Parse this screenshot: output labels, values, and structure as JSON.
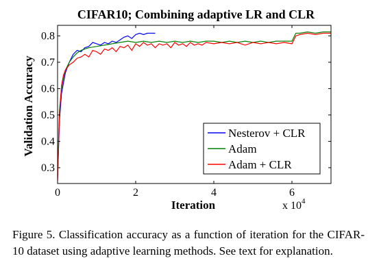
{
  "chart_data": {
    "type": "line",
    "title": "CIFAR10;  Combining adaptive LR and CLR",
    "xlabel": "Iteration",
    "ylabel": "Validation Accuracy",
    "x_multiplier_label": "x 10",
    "x_multiplier_exponent": "4",
    "xlim": [
      0,
      70000
    ],
    "ylim": [
      0.24,
      0.84
    ],
    "x_ticks": [
      0,
      20000,
      40000,
      60000
    ],
    "x_tick_labels": [
      "0",
      "2",
      "4",
      "6"
    ],
    "y_ticks": [
      0.3,
      0.4,
      0.5,
      0.6,
      0.7,
      0.8
    ],
    "y_tick_labels": [
      "0.3",
      "0.4",
      "0.5",
      "0.6",
      "0.7",
      "0.8"
    ],
    "grid": false,
    "legend_position": "bottom-right",
    "series": [
      {
        "name": "Nesterov + CLR",
        "color": "#0000ff",
        "x": [
          0,
          500,
          1000,
          1500,
          2000,
          3000,
          4000,
          5000,
          6000,
          7000,
          8000,
          9000,
          10000,
          11000,
          12000,
          13000,
          14000,
          15000,
          16000,
          17000,
          18000,
          19000,
          20000,
          21000,
          22000,
          23000,
          24000,
          25000
        ],
        "y": [
          0.26,
          0.48,
          0.58,
          0.62,
          0.66,
          0.7,
          0.73,
          0.745,
          0.74,
          0.755,
          0.76,
          0.775,
          0.77,
          0.765,
          0.775,
          0.77,
          0.78,
          0.775,
          0.785,
          0.795,
          0.8,
          0.79,
          0.805,
          0.81,
          0.805,
          0.81,
          0.81,
          0.81
        ]
      },
      {
        "name": "Adam",
        "color": "#008000",
        "x": [
          0,
          500,
          1000,
          1500,
          2000,
          3000,
          4000,
          5000,
          6000,
          7000,
          8000,
          10000,
          12000,
          14000,
          16000,
          18000,
          20000,
          22000,
          24000,
          26000,
          28000,
          30000,
          32000,
          34000,
          36000,
          38000,
          40000,
          42000,
          44000,
          46000,
          48000,
          50000,
          52000,
          54000,
          56000,
          58000,
          60000,
          61000,
          62000,
          64000,
          66000,
          68000,
          70000
        ],
        "y": [
          0.27,
          0.52,
          0.6,
          0.64,
          0.67,
          0.7,
          0.72,
          0.735,
          0.745,
          0.75,
          0.755,
          0.76,
          0.765,
          0.77,
          0.775,
          0.78,
          0.775,
          0.78,
          0.775,
          0.78,
          0.775,
          0.78,
          0.775,
          0.78,
          0.775,
          0.78,
          0.78,
          0.775,
          0.78,
          0.775,
          0.78,
          0.775,
          0.78,
          0.775,
          0.78,
          0.78,
          0.78,
          0.81,
          0.81,
          0.815,
          0.81,
          0.815,
          0.815
        ]
      },
      {
        "name": "Adam + CLR",
        "color": "#ff0000",
        "x": [
          0,
          500,
          1000,
          1500,
          2000,
          3000,
          4000,
          5000,
          6000,
          7000,
          8000,
          9000,
          10000,
          11000,
          12000,
          13000,
          14000,
          15000,
          16000,
          17000,
          18000,
          19000,
          20000,
          21000,
          22000,
          23000,
          24000,
          25000,
          26000,
          27000,
          28000,
          29000,
          30000,
          31000,
          32000,
          33000,
          34000,
          35000,
          36000,
          37000,
          38000,
          40000,
          42000,
          44000,
          46000,
          48000,
          50000,
          52000,
          54000,
          56000,
          58000,
          60000,
          61000,
          62000,
          64000,
          66000,
          68000,
          70000
        ],
        "y": [
          0.25,
          0.5,
          0.61,
          0.65,
          0.67,
          0.69,
          0.7,
          0.715,
          0.72,
          0.73,
          0.72,
          0.745,
          0.74,
          0.73,
          0.75,
          0.745,
          0.755,
          0.74,
          0.76,
          0.755,
          0.765,
          0.745,
          0.77,
          0.76,
          0.775,
          0.765,
          0.77,
          0.755,
          0.77,
          0.765,
          0.77,
          0.755,
          0.775,
          0.765,
          0.77,
          0.76,
          0.775,
          0.765,
          0.77,
          0.765,
          0.775,
          0.77,
          0.775,
          0.77,
          0.775,
          0.765,
          0.775,
          0.77,
          0.775,
          0.77,
          0.775,
          0.77,
          0.8,
          0.805,
          0.81,
          0.805,
          0.81,
          0.81
        ]
      }
    ]
  },
  "caption": {
    "lines": [
      "Figure 5. Classification accuracy as a function of iteration for the",
      "CIFAR-10 dataset using adaptive learning methods.  See text for",
      "explanation."
    ]
  }
}
